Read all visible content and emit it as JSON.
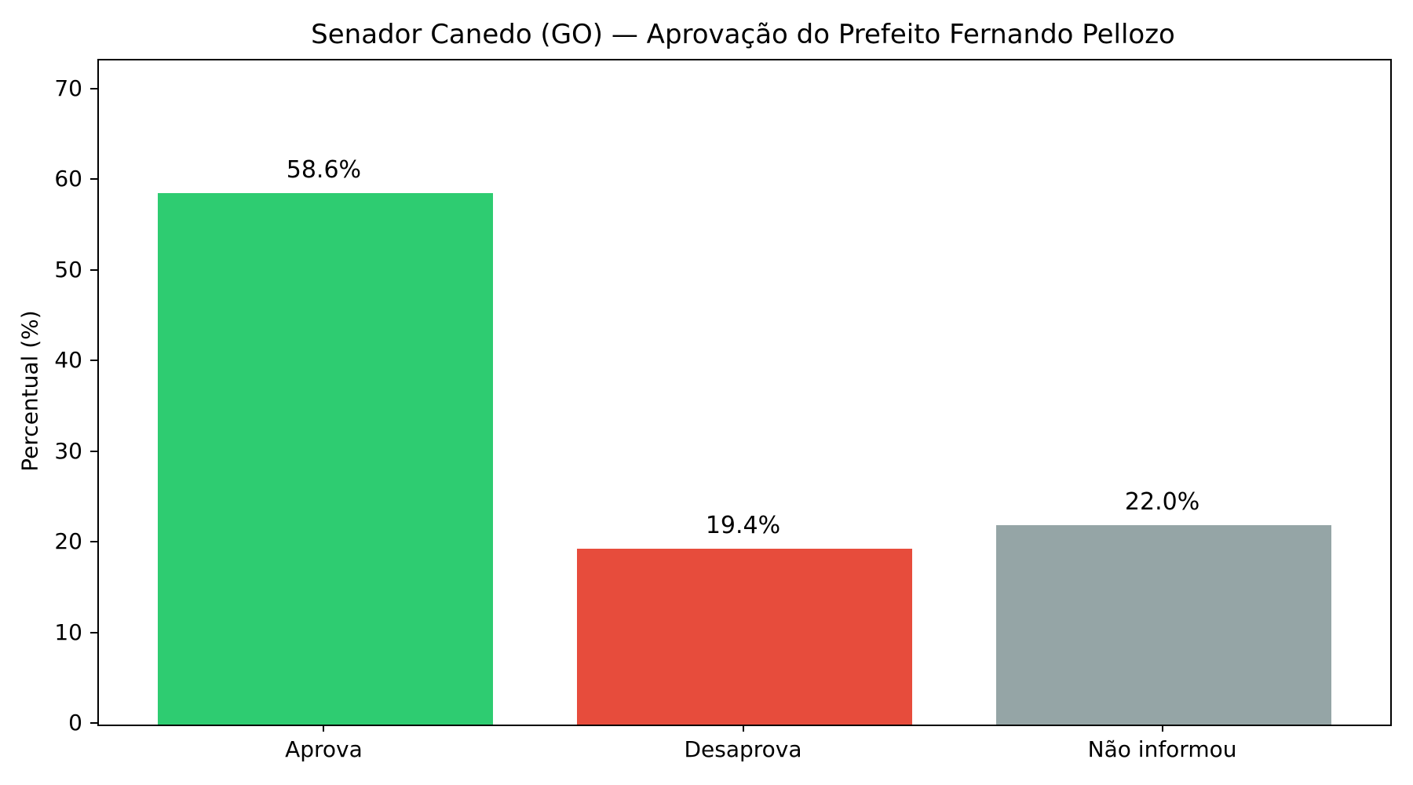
{
  "chart_data": {
    "type": "bar",
    "title": "Senador Canedo (GO) — Aprovação do Prefeito Fernando Pellozo",
    "xlabel": "",
    "ylabel": "Percentual (%)",
    "categories": [
      "Aprova",
      "Desaprova",
      "Não informou"
    ],
    "values": [
      58.6,
      19.4,
      22.0
    ],
    "value_labels": [
      "58.6%",
      "19.4%",
      "22.0%"
    ],
    "bar_colors": [
      "#2ecc71",
      "#e74c3c",
      "#95a5a6"
    ],
    "yticks": [
      0,
      10,
      20,
      30,
      40,
      50,
      60,
      70
    ],
    "ylim": [
      0,
      73.25
    ],
    "grid": false,
    "legend": "none",
    "text_color": "#000000",
    "spine_color": "#000000"
  }
}
